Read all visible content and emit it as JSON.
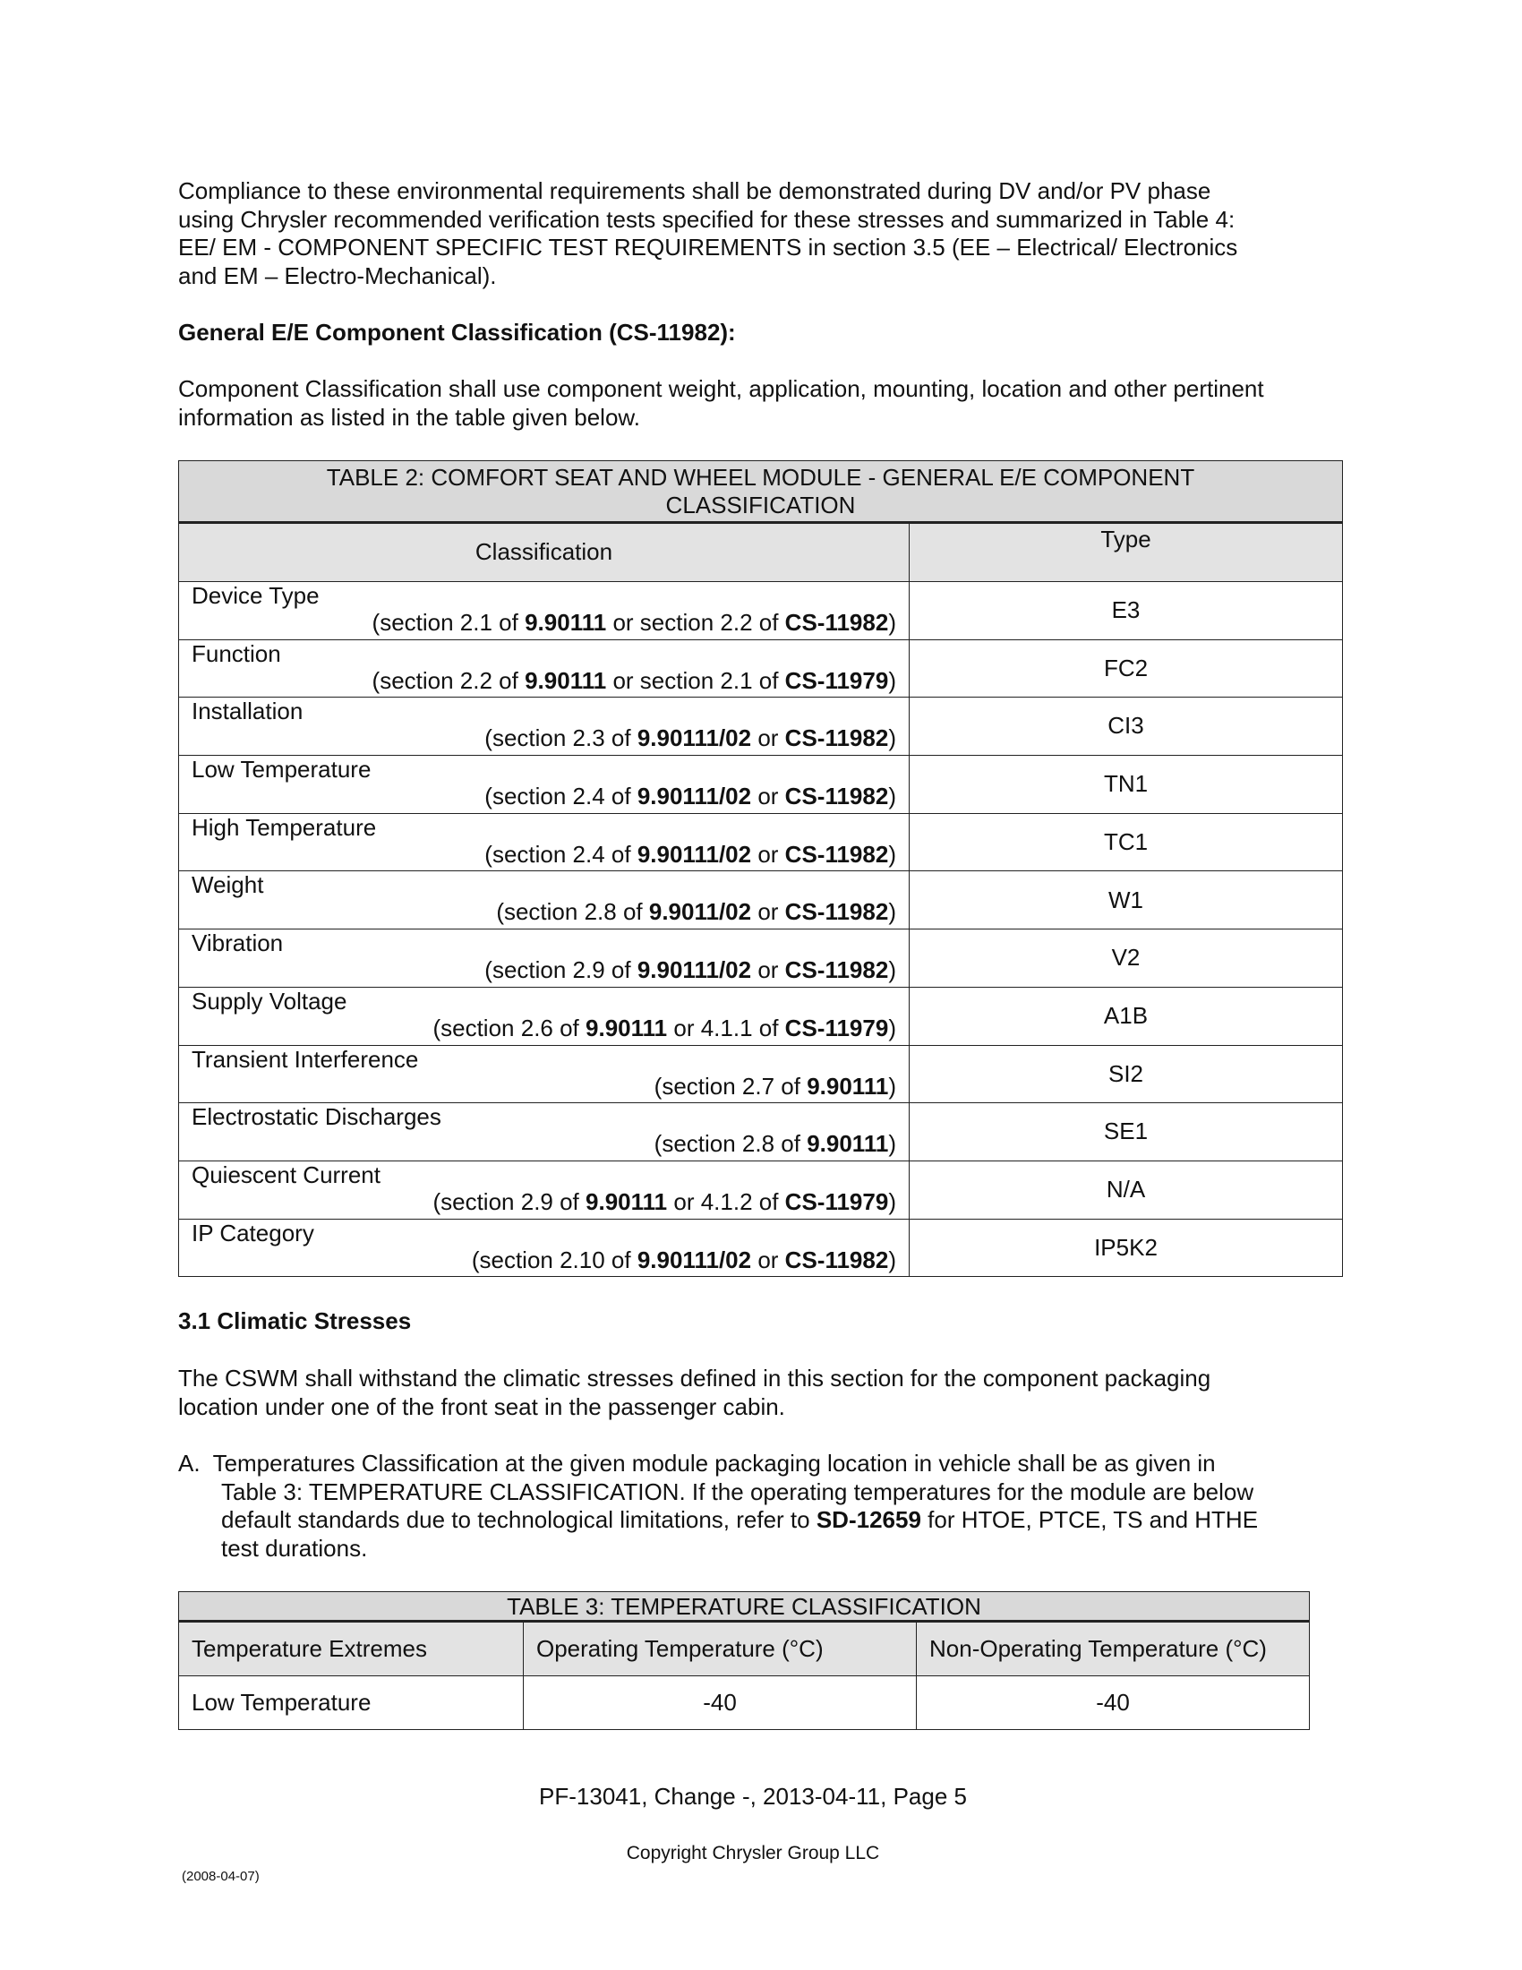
{
  "intro": {
    "lines": [
      "Compliance to these environmental requirements shall be demonstrated during DV and/or PV phase",
      "using Chrysler recommended verification tests specified for these stresses and summarized in Table 4:",
      "EE/ EM - COMPONENT SPECIFIC TEST REQUIREMENTS in section 3.5 (EE – Electrical/ Electronics",
      "and EM – Electro-Mechanical)."
    ]
  },
  "heading1": "General E/E Component Classification (CS-11982):",
  "para2": {
    "lines": [
      "Component Classification shall use component weight, application, mounting, location and other pertinent",
      "information as listed in the table given below."
    ]
  },
  "table2": {
    "title_line1": "TABLE 2:  COMFORT SEAT AND WHEEL MODULE -  GENERAL E/E COMPONENT",
    "title_line2": "CLASSIFICATION",
    "col1": "Classification",
    "col2": "Type",
    "rows": [
      {
        "name": "Device Type",
        "ref": [
          {
            "t": "(section 2.1 of "
          },
          {
            "t": "9.90111",
            "b": true
          },
          {
            "t": " or section 2.2 of "
          },
          {
            "t": "CS-11982",
            "b": true
          },
          {
            "t": ")"
          }
        ],
        "type": "E3"
      },
      {
        "name": "Function",
        "ref": [
          {
            "t": "(section 2.2 of "
          },
          {
            "t": "9.90111",
            "b": true
          },
          {
            "t": " or section 2.1 of "
          },
          {
            "t": "CS-11979",
            "b": true
          },
          {
            "t": ")"
          }
        ],
        "type": "FC2"
      },
      {
        "name": "Installation",
        "ref": [
          {
            "t": "(section 2.3 of "
          },
          {
            "t": "9.90111/02",
            "b": true
          },
          {
            "t": " or "
          },
          {
            "t": "CS-11982",
            "b": true
          },
          {
            "t": ")"
          }
        ],
        "type": "CI3"
      },
      {
        "name": "Low Temperature",
        "ref": [
          {
            "t": "(section 2.4  of "
          },
          {
            "t": "9.90111/02",
            "b": true
          },
          {
            "t": " or "
          },
          {
            "t": "CS-11982",
            "b": true
          },
          {
            "t": ")"
          }
        ],
        "type": "TN1"
      },
      {
        "name": "High Temperature",
        "ref": [
          {
            "t": "(section 2.4 of "
          },
          {
            "t": "9.90111/02",
            "b": true
          },
          {
            "t": " or "
          },
          {
            "t": "CS-11982",
            "b": true
          },
          {
            "t": ")"
          }
        ],
        "type": "TC1"
      },
      {
        "name": "Weight",
        "ref": [
          {
            "t": "(section 2.8 of "
          },
          {
            "t": "9.9011/02",
            "b": true
          },
          {
            "t": " or "
          },
          {
            "t": "CS-11982",
            "b": true
          },
          {
            "t": ")"
          }
        ],
        "type": "W1"
      },
      {
        "name": "Vibration",
        "ref": [
          {
            "t": "(section 2.9 of "
          },
          {
            "t": "9.90111/02",
            "b": true
          },
          {
            "t": " or "
          },
          {
            "t": "CS-11982",
            "b": true
          },
          {
            "t": ")"
          }
        ],
        "type": "V2"
      },
      {
        "name": "Supply Voltage",
        "ref": [
          {
            "t": "(section 2.6 of "
          },
          {
            "t": "9.90111",
            "b": true
          },
          {
            "t": " or 4.1.1 of "
          },
          {
            "t": "CS-11979",
            "b": true
          },
          {
            "t": ")"
          }
        ],
        "type": "A1B"
      },
      {
        "name": "Transient Interference",
        "ref": [
          {
            "t": "(section 2.7 of "
          },
          {
            "t": "9.90111",
            "b": true
          },
          {
            "t": ")"
          }
        ],
        "type": "SI2"
      },
      {
        "name": "Electrostatic Discharges",
        "ref": [
          {
            "t": "(section 2.8 of "
          },
          {
            "t": "9.90111",
            "b": true
          },
          {
            "t": ")"
          }
        ],
        "type": "SE1"
      },
      {
        "name": "Quiescent Current",
        "ref": [
          {
            "t": "(section 2.9 of "
          },
          {
            "t": "9.90111",
            "b": true
          },
          {
            "t": " or 4.1.2 of "
          },
          {
            "t": "CS-11979",
            "b": true
          },
          {
            "t": ")"
          }
        ],
        "type": "N/A"
      },
      {
        "name": "IP Category",
        "ref": [
          {
            "t": "(section 2.10 of "
          },
          {
            "t": "9.90111/02",
            "b": true
          },
          {
            "t": " or "
          },
          {
            "t": "CS-11982",
            "b": true
          },
          {
            "t": ")"
          }
        ],
        "type": "IP5K2"
      }
    ]
  },
  "heading2": "3.1  Climatic Stresses",
  "para3": {
    "lines": [
      "The CSWM shall withstand the climatic stresses defined in this section for the component packaging",
      "location under one of the front seat in the passenger cabin."
    ]
  },
  "itemA": {
    "marker": "A.",
    "line1": "Temperatures Classification at the given module packaging location in vehicle shall be as given in",
    "line2": "Table 3: TEMPERATURE CLASSIFICATION.  If the operating temperatures for the module are below",
    "line3_pre": "default standards due to technological limitations, refer to ",
    "line3_bold": "SD-12659",
    "line3_post": " for HTOE, PTCE, TS and HTHE",
    "line4": "test durations."
  },
  "table3": {
    "title": "TABLE 3:  TEMPERATURE CLASSIFICATION",
    "headers": [
      "Temperature Extremes",
      "Operating Temperature (°C)",
      "Non-Operating Temperature (°C)"
    ],
    "rows": [
      [
        "Low Temperature",
        "-40",
        "-40"
      ]
    ]
  },
  "footer": {
    "page": "PF-13041, Change -, 2013-04-11, Page 5",
    "copyright": "Copyright Chrysler Group LLC",
    "form_date": "(2008-04-07)"
  }
}
